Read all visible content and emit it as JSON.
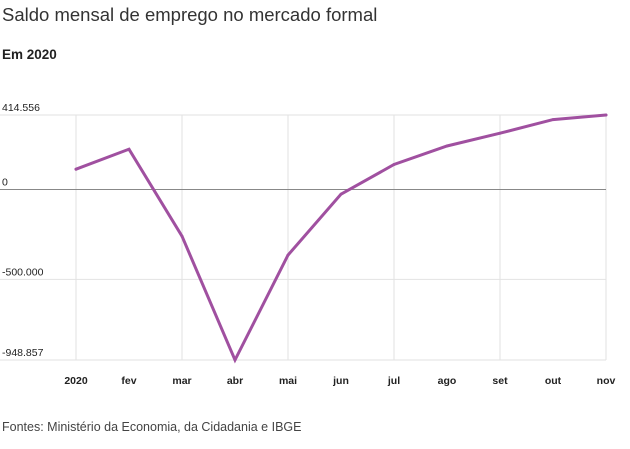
{
  "title": "Saldo mensal de emprego no mercado formal",
  "subtitle": "Em 2020",
  "source": "Fontes: Ministério da Economia, da Cidadania e IBGE",
  "chart_data": {
    "type": "line",
    "categories": [
      "2020",
      "fev",
      "mar",
      "abr",
      "mai",
      "jun",
      "jul",
      "ago",
      "set",
      "out",
      "nov"
    ],
    "series": [
      {
        "values": [
          113000,
          224000,
          -260000,
          -948857,
          -365000,
          -26000,
          139000,
          242000,
          313000,
          389000,
          414556
        ],
        "color": "#a050a0"
      }
    ],
    "yticks": [
      {
        "value": 414556,
        "label": "414.556"
      },
      {
        "value": 0,
        "label": "0"
      },
      {
        "value": -500000,
        "label": "-500.000"
      },
      {
        "value": -948857,
        "label": "-948.857"
      }
    ],
    "ylim": [
      -948857,
      414556
    ],
    "grid": true,
    "zero_line": true
  }
}
